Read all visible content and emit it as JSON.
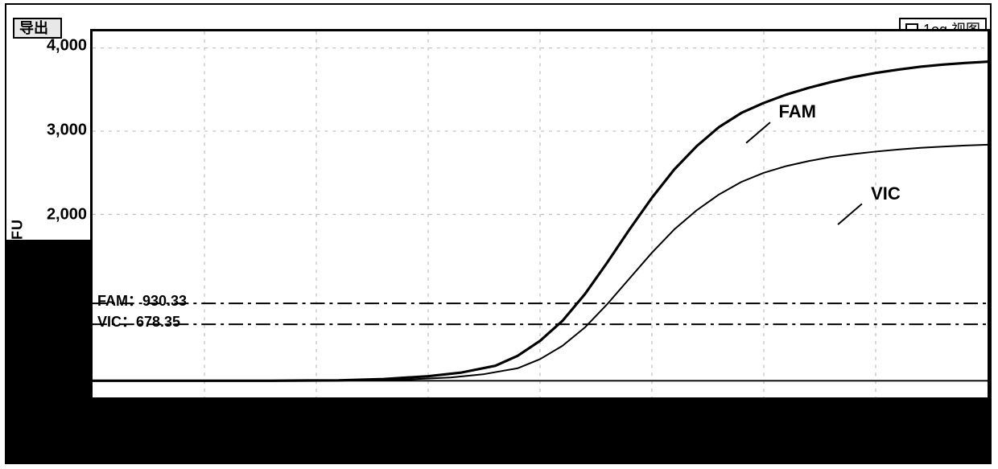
{
  "buttons": {
    "export_label": "导出",
    "log_view_label": "1og 视图"
  },
  "chart": {
    "type": "line",
    "ylabel": "RFU",
    "label_fontsize": 18,
    "background_color": "#ffffff",
    "grid_color": "#bdbdbd",
    "grid_dash": "4 6",
    "border_color": "#000000",
    "border_width": 3,
    "font_family": "SimSun, Arial",
    "tick_fontsize": 20,
    "xlim": [
      0,
      40
    ],
    "ylim": [
      -200,
      4200
    ],
    "yticks": [
      2000,
      3000,
      4000
    ],
    "ytick_labels": [
      "2,000",
      "3,000",
      "4,000"
    ],
    "vgrid_count": 8,
    "thresholds": [
      {
        "name": "FAM",
        "value": 930.33,
        "label": "FAM：930.33",
        "dash": "18 6 4 6",
        "color": "#000000",
        "width": 2
      },
      {
        "name": "VIC",
        "value": 678.35,
        "label": "VIC：678.35",
        "dash": "18 6 4 6",
        "color": "#000000",
        "width": 2
      }
    ],
    "baseline_y": 0,
    "series": [
      {
        "name": "FAM",
        "color": "#000000",
        "line_width": 3.2,
        "callout": {
          "label": "FAM",
          "x": 30.5,
          "y": 3240
        },
        "points": [
          [
            0,
            0
          ],
          [
            4,
            0
          ],
          [
            8,
            0
          ],
          [
            11,
            5
          ],
          [
            13,
            20
          ],
          [
            15,
            55
          ],
          [
            16.5,
            100
          ],
          [
            18,
            180
          ],
          [
            19,
            300
          ],
          [
            20,
            480
          ],
          [
            21,
            720
          ],
          [
            22,
            1040
          ],
          [
            23,
            1420
          ],
          [
            24,
            1820
          ],
          [
            25,
            2200
          ],
          [
            26,
            2540
          ],
          [
            27,
            2820
          ],
          [
            28,
            3050
          ],
          [
            29,
            3220
          ],
          [
            30,
            3340
          ],
          [
            31,
            3440
          ],
          [
            32,
            3520
          ],
          [
            33,
            3590
          ],
          [
            34,
            3650
          ],
          [
            35,
            3700
          ],
          [
            36,
            3740
          ],
          [
            37,
            3775
          ],
          [
            38,
            3800
          ],
          [
            39,
            3820
          ],
          [
            40,
            3835
          ]
        ]
      },
      {
        "name": "VIC",
        "color": "#000000",
        "line_width": 2.0,
        "callout": {
          "label": "VIC",
          "x": 34.6,
          "y": 2260
        },
        "points": [
          [
            0,
            0
          ],
          [
            4,
            0
          ],
          [
            8,
            0
          ],
          [
            12,
            5
          ],
          [
            14,
            15
          ],
          [
            16,
            40
          ],
          [
            17.5,
            80
          ],
          [
            19,
            150
          ],
          [
            20,
            260
          ],
          [
            21,
            420
          ],
          [
            22,
            640
          ],
          [
            23,
            920
          ],
          [
            24,
            1230
          ],
          [
            25,
            1540
          ],
          [
            26,
            1820
          ],
          [
            27,
            2050
          ],
          [
            28,
            2240
          ],
          [
            29,
            2390
          ],
          [
            30,
            2500
          ],
          [
            31,
            2580
          ],
          [
            32,
            2640
          ],
          [
            33,
            2690
          ],
          [
            34,
            2725
          ],
          [
            35,
            2755
          ],
          [
            36,
            2780
          ],
          [
            37,
            2800
          ],
          [
            38,
            2815
          ],
          [
            39,
            2828
          ],
          [
            40,
            2838
          ]
        ]
      }
    ]
  },
  "left_band_color": "#000000",
  "bottom_band_color": "#000000"
}
